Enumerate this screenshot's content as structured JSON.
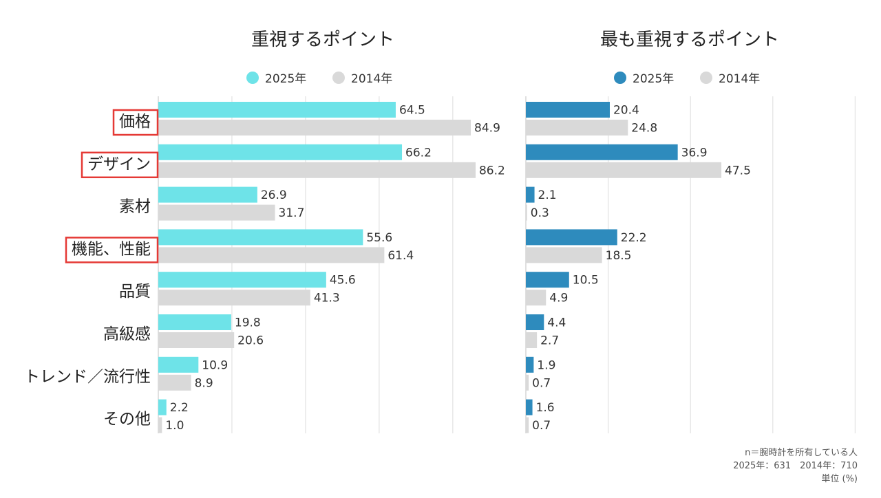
{
  "chart_data": [
    {
      "type": "bar",
      "title": "重視するポイント",
      "categories": [
        "価格",
        "デザイン",
        "素材",
        "機能、性能",
        "品質",
        "高級感",
        "トレンド／流行性",
        "その他"
      ],
      "highlighted_categories": [
        "価格",
        "デザイン",
        "機能、性能"
      ],
      "series": [
        {
          "name": "2025年",
          "color": "#6ee3e8",
          "values": [
            64.5,
            66.2,
            26.9,
            55.6,
            45.6,
            19.8,
            10.9,
            2.2
          ]
        },
        {
          "name": "2014年",
          "color": "#d9d9d9",
          "values": [
            84.9,
            86.2,
            31.7,
            61.4,
            41.3,
            20.6,
            8.9,
            1.0
          ]
        }
      ],
      "orientation": "horizontal",
      "xlim": [
        0,
        90
      ],
      "grid": true,
      "legend": "top"
    },
    {
      "type": "bar",
      "title": "最も重視するポイント",
      "categories": [
        "価格",
        "デザイン",
        "素材",
        "機能、性能",
        "品質",
        "高級感",
        "トレンド／流行性",
        "その他"
      ],
      "series": [
        {
          "name": "2025年",
          "color": "#2e8bbd",
          "values": [
            20.4,
            36.9,
            2.1,
            22.2,
            10.5,
            4.4,
            1.9,
            1.6
          ]
        },
        {
          "name": "2014年",
          "color": "#d9d9d9",
          "values": [
            24.8,
            47.5,
            0.3,
            18.5,
            4.9,
            2.7,
            0.7,
            0.7
          ]
        }
      ],
      "orientation": "horizontal",
      "xlim": [
        0,
        80
      ],
      "grid": true,
      "legend": "top"
    }
  ],
  "highlight_color": "#e53935",
  "footnote": {
    "line1": "n＝腕時計を所有している人",
    "line2": "2025年：631　2014年：710",
    "line3": "単位 (%)"
  }
}
